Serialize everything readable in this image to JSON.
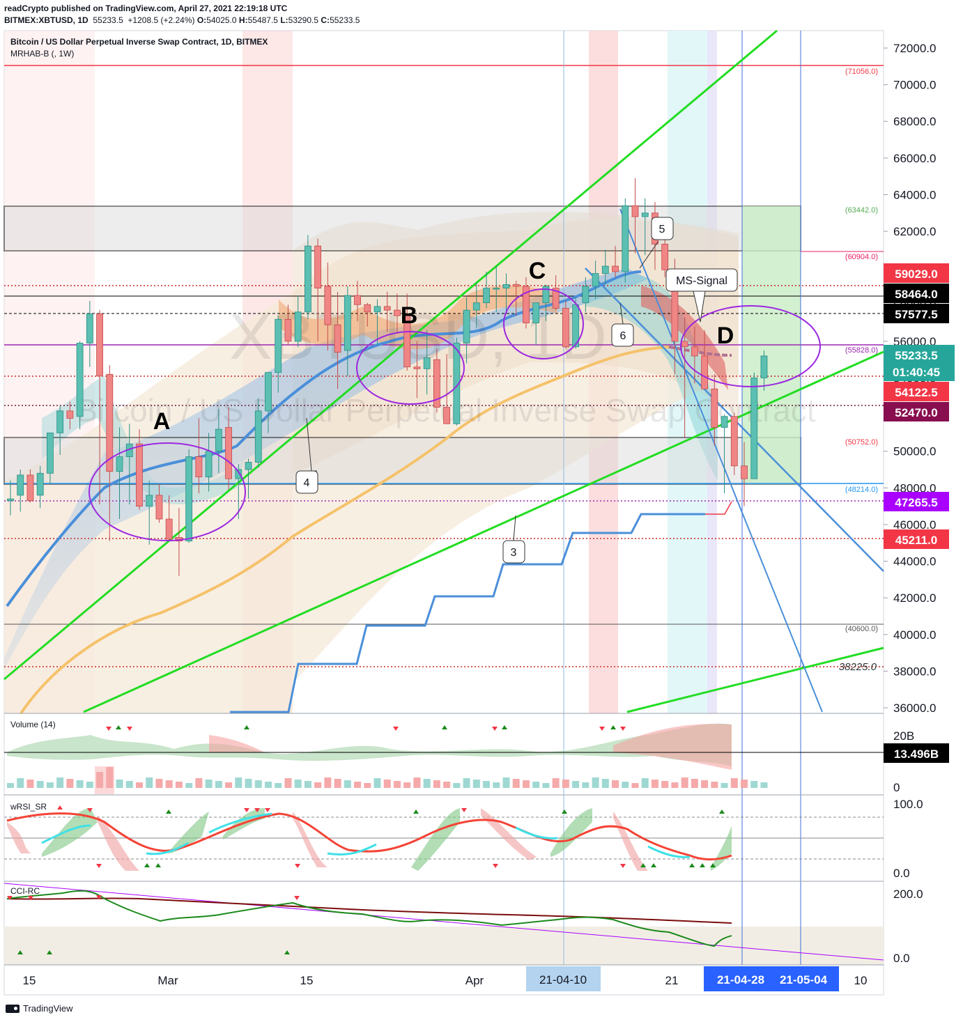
{
  "header": {
    "line1": "readCrypto published on TradingView.com, April 27, 2021 22:19:18 UTC",
    "symbol": "BITMEX:XBTUSD, 1D",
    "last": "55233.5",
    "change": "+1208.5 (+2.24%)",
    "open": "54025.0",
    "high": "55487.5",
    "low": "53290.5",
    "close": "55233.5",
    "title": "Bitcoin / US Dollar Perpetual Inverse Swap Contract, 1D, BITMEX",
    "indicator": "MRHAB-B (, 1W)"
  },
  "watermark": {
    "symbol": "XBTUSD, 1D",
    "name": "Bitcoin / US Dollar Perpetual Inverse Swap Contract"
  },
  "price_axis": {
    "ticks": [
      "72000.0",
      "70000.0",
      "68000.0",
      "66000.0",
      "64000.0",
      "62000.0",
      "60000.0",
      "58000.0",
      "56000.0",
      "54000.0",
      "52000.0",
      "50000.0",
      "48000.0",
      "46000.0",
      "44000.0",
      "42000.0",
      "40000.0",
      "38000.0",
      "36000.0"
    ],
    "badges": [
      {
        "text": "59029.0",
        "color": "#f23645"
      },
      {
        "text": "58464.0",
        "color": "#000000"
      },
      {
        "text": "57577.5",
        "color": "#000000"
      },
      {
        "text": "55233.5",
        "color": "#26a69a"
      },
      {
        "text": "01:40:45",
        "color": "#26a69a"
      },
      {
        "text": "54122.5",
        "color": "#f23645"
      },
      {
        "text": "52470.0",
        "color": "#880e4f"
      },
      {
        "text": "47265.5",
        "color": "#aa00ff"
      },
      {
        "text": "45211.0",
        "color": "#f23645"
      }
    ],
    "level_labels": [
      "(71056.0)",
      "(63442.0)",
      "(60904.0)",
      "(55828.0)",
      "(50752.0)",
      "(48214.0)",
      "(40600.0)",
      "38225.0"
    ]
  },
  "time_axis": {
    "labels": [
      "15",
      "Mar",
      "15",
      "Apr",
      "21",
      "10"
    ],
    "highlight_labels": [
      "21-04-10",
      "21-04-28",
      "21-05-04"
    ]
  },
  "annotations": {
    "letters": [
      "A",
      "B",
      "C",
      "D"
    ],
    "callouts": [
      "4",
      "3",
      "5",
      "6",
      "MS-Signal"
    ]
  },
  "panes": {
    "volume": {
      "label": "Volume (14)",
      "ticks": [
        "20B",
        "0"
      ],
      "badge": "13.496B"
    },
    "wrsi": {
      "label": "wRSI_SR",
      "ticks": [
        "100.0",
        "0.0"
      ]
    },
    "cci": {
      "label": "CCI-RC",
      "ticks": [
        "200.0",
        "0.0"
      ]
    }
  },
  "footer": {
    "brand": "TradingView"
  },
  "chart_data": {
    "type": "candlestick",
    "title": "Bitcoin / US Dollar Perpetual Inverse Swap Contract, 1D, BITMEX",
    "start_date": "2021-02-12",
    "ylim": [
      35500,
      73000
    ],
    "ohlc": [
      [
        47300,
        48400,
        46500,
        47400
      ],
      [
        47600,
        49000,
        46700,
        48700
      ],
      [
        48700,
        49000,
        47200,
        47300
      ],
      [
        47600,
        49200,
        46900,
        48800
      ],
      [
        48800,
        51000,
        48200,
        51000
      ],
      [
        51000,
        52500,
        49800,
        52200
      ],
      [
        52200,
        52700,
        51200,
        51800
      ],
      [
        51900,
        56000,
        51200,
        55900
      ],
      [
        55900,
        58200,
        54600,
        57500
      ],
      [
        57500,
        57700,
        47100,
        54100
      ],
      [
        54200,
        54700,
        45100,
        48900
      ],
      [
        48900,
        51300,
        46300,
        49700
      ],
      [
        49700,
        51500,
        47100,
        50400
      ],
      [
        50400,
        51200,
        46800,
        47000
      ],
      [
        47000,
        48400,
        44900,
        47600
      ],
      [
        47600,
        48200,
        46100,
        46300
      ],
      [
        46300,
        47600,
        45100,
        45200
      ],
      [
        45300,
        46900,
        43200,
        45100
      ],
      [
        45100,
        50100,
        45000,
        49700
      ],
      [
        49700,
        51800,
        47700,
        48600
      ],
      [
        48600,
        51000,
        47800,
        50000
      ],
      [
        50000,
        52300,
        48800,
        51200
      ],
      [
        51300,
        52400,
        47900,
        48500
      ],
      [
        48500,
        49300,
        46300,
        49000
      ],
      [
        49000,
        49600,
        47400,
        49400
      ],
      [
        49400,
        52900,
        49100,
        52200
      ],
      [
        52200,
        54000,
        51000,
        54300
      ],
      [
        54300,
        57400,
        53200,
        57200
      ],
      [
        57200,
        58000,
        55800,
        56000
      ],
      [
        56000,
        58500,
        55700,
        57600
      ],
      [
        57600,
        61800,
        57200,
        61200
      ],
      [
        61200,
        61600,
        56000,
        58900
      ],
      [
        59000,
        60300,
        55500,
        56900
      ],
      [
        56900,
        58700,
        53400,
        55400
      ],
      [
        55500,
        59000,
        54100,
        58500
      ],
      [
        58500,
        59300,
        57100,
        58000
      ],
      [
        58000,
        58100,
        56800,
        57600
      ],
      [
        57600,
        58300,
        55800,
        57900
      ],
      [
        57900,
        58700,
        56500,
        57700
      ],
      [
        57700,
        58600,
        56400,
        57400
      ],
      [
        57400,
        58600,
        54400,
        54600
      ],
      [
        54600,
        56000,
        52900,
        54500
      ],
      [
        54500,
        56600,
        53100,
        55100
      ],
      [
        55000,
        55600,
        52100,
        52400
      ],
      [
        52400,
        55300,
        51700,
        51500
      ],
      [
        51500,
        56200,
        51400,
        55900
      ],
      [
        55900,
        58400,
        54800,
        57700
      ],
      [
        57700,
        59200,
        56700,
        58100
      ],
      [
        58100,
        59800,
        57800,
        58900
      ],
      [
        58900,
        60100,
        57600,
        58900
      ],
      [
        58900,
        59700,
        57500,
        59100
      ],
      [
        59100,
        59300,
        57400,
        59000
      ],
      [
        59000,
        59500,
        56700,
        57000
      ],
      [
        57000,
        58000,
        55800,
        58100
      ],
      [
        58100,
        59100,
        57100,
        59000
      ],
      [
        58900,
        59600,
        57700,
        57800
      ],
      [
        57800,
        58200,
        55600,
        55700
      ],
      [
        55700,
        58400,
        55600,
        58000
      ],
      [
        58100,
        59500,
        57600,
        59000
      ],
      [
        59000,
        60400,
        58300,
        59700
      ],
      [
        59700,
        61000,
        59100,
        60100
      ],
      [
        60100,
        61200,
        59500,
        59800
      ],
      [
        59800,
        63800,
        59200,
        63400
      ],
      [
        63400,
        64900,
        60800,
        62800
      ],
      [
        62800,
        63800,
        60700,
        63000
      ],
      [
        63000,
        63600,
        59900,
        61300
      ],
      [
        61300,
        61800,
        59500,
        59900
      ],
      [
        59900,
        60500,
        54200,
        56000
      ],
      [
        56000,
        57300,
        50700,
        55700
      ],
      [
        55700,
        56800,
        53700,
        55200
      ],
      [
        55200,
        56600,
        53500,
        53400
      ],
      [
        53400,
        54200,
        50300,
        51300
      ],
      [
        51300,
        52000,
        47700,
        51900
      ],
      [
        51900,
        52100,
        48700,
        49200
      ],
      [
        49200,
        50500,
        47000,
        48500
      ],
      [
        48500,
        54300,
        48500,
        54000
      ],
      [
        54000,
        55500,
        53300,
        55200
      ]
    ],
    "horizontal_levels": [
      71056,
      63442,
      60904,
      59029,
      58464,
      57577.5,
      55828,
      54122.5,
      52470,
      50752,
      48214,
      47265.5,
      45211,
      40600,
      38225
    ],
    "volume_pane": {
      "range": [
        0,
        20
      ]
    },
    "wrsi_pane": {
      "range": [
        0,
        100
      ]
    },
    "cci_pane": {
      "range": [
        0,
        200
      ]
    }
  }
}
